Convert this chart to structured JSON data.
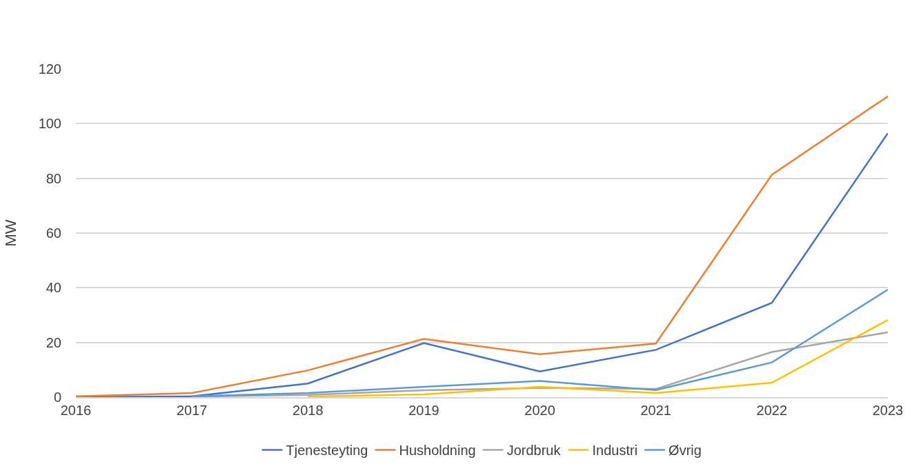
{
  "chart_data": {
    "type": "line",
    "ylabel": "MW",
    "x": [
      2016,
      2017,
      2018,
      2019,
      2020,
      2021,
      2022,
      2023
    ],
    "series": [
      {
        "name": "Tjenesteyting",
        "color": "#4472c4",
        "values": [
          0,
          0.3,
          5,
          19.8,
          9.4,
          17.3,
          34.5,
          96.5
        ]
      },
      {
        "name": "Husholdning",
        "color": "#ed7d31",
        "values": [
          0.3,
          1.5,
          9.8,
          21.3,
          15.7,
          19.6,
          81.3,
          110
        ]
      },
      {
        "name": "Jordbruk",
        "color": "#a5a5a5",
        "values": [
          null,
          0.2,
          0.8,
          2.5,
          3.4,
          3.0,
          16.5,
          23.7
        ]
      },
      {
        "name": "Industri",
        "color": "#ffc000",
        "values": [
          null,
          null,
          0.2,
          1,
          3.8,
          1.5,
          5.3,
          28.2
        ]
      },
      {
        "name": "Øvrig",
        "color": "#5b9bd5",
        "values": [
          null,
          0.3,
          1.5,
          3.8,
          5.9,
          2.6,
          12.7,
          39.3
        ]
      }
    ],
    "xlim": [
      2016,
      2023
    ],
    "xticks": [
      2016,
      2017,
      2018,
      2019,
      2020,
      2021,
      2022,
      2023
    ],
    "ylim": [
      0,
      120
    ],
    "yticks": [
      0,
      20,
      40,
      60,
      80,
      100,
      120
    ],
    "grid": "y",
    "legend": "bottom",
    "marker": "none",
    "line_style": "solid"
  }
}
